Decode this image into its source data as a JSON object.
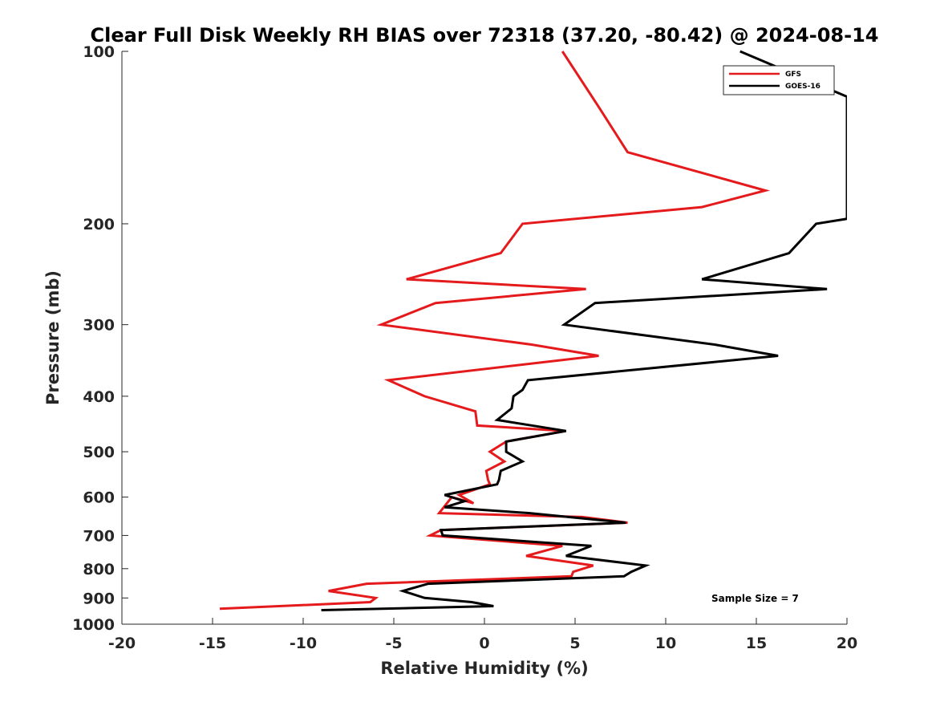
{
  "chart_data": {
    "type": "line",
    "title": "Clear Full Disk Weekly RH BIAS over 72318 (37.20, -80.42) @ 2024-08-14",
    "xlabel": "Relative Humidity (%)",
    "ylabel": "Pressure (mb)",
    "xlim": [
      -20,
      20
    ],
    "ylim": [
      100,
      1000
    ],
    "y_scale": "log",
    "y_reversed": true,
    "grid": false,
    "legend_position": "top-right",
    "xticks": [
      -20,
      -15,
      -10,
      -5,
      0,
      5,
      10,
      15,
      20
    ],
    "yticks": [
      100,
      200,
      300,
      400,
      500,
      600,
      700,
      800,
      900,
      1000
    ],
    "annotation": "Sample Size = 7",
    "series": [
      {
        "name": "GFS",
        "color": "#e41a1c",
        "points": [
          [
            4.3,
            100
          ],
          [
            6.3,
            125
          ],
          [
            7.9,
            150
          ],
          [
            15.5,
            175
          ],
          [
            12.0,
            187
          ],
          [
            2.1,
            200
          ],
          [
            0.9,
            225
          ],
          [
            -4.3,
            250
          ],
          [
            5.6,
            260
          ],
          [
            -2.7,
            275
          ],
          [
            -5.7,
            300
          ],
          [
            2.6,
            325
          ],
          [
            6.3,
            340
          ],
          [
            -5.3,
            375
          ],
          [
            -3.3,
            400
          ],
          [
            -0.5,
            425
          ],
          [
            -0.4,
            450
          ],
          [
            4.5,
            460
          ],
          [
            1.2,
            480
          ],
          [
            0.3,
            500
          ],
          [
            1.1,
            520
          ],
          [
            0.1,
            540
          ],
          [
            0.2,
            560
          ],
          [
            0.3,
            570
          ],
          [
            -1.4,
            595
          ],
          [
            -0.6,
            615
          ],
          [
            -1.8,
            600
          ],
          [
            -2.5,
            640
          ],
          [
            5.4,
            650
          ],
          [
            7.9,
            665
          ],
          [
            -2.4,
            685
          ],
          [
            -3.0,
            700
          ],
          [
            4.3,
            730
          ],
          [
            2.3,
            760
          ],
          [
            6.0,
            790
          ],
          [
            4.9,
            810
          ],
          [
            4.8,
            825
          ],
          [
            -6.5,
            850
          ],
          [
            -8.6,
            875
          ],
          [
            -6.0,
            900
          ],
          [
            -6.3,
            915
          ],
          [
            -14.6,
            940
          ]
        ]
      },
      {
        "name": "GOES-16",
        "color": "#000000",
        "points": [
          [
            14.1,
            100
          ],
          [
            20.0,
            120
          ],
          [
            20.0,
            196
          ],
          [
            18.3,
            200
          ],
          [
            16.8,
            225
          ],
          [
            12.0,
            250
          ],
          [
            18.9,
            260
          ],
          [
            6.1,
            275
          ],
          [
            4.4,
            300
          ],
          [
            12.7,
            325
          ],
          [
            16.2,
            340
          ],
          [
            2.4,
            375
          ],
          [
            2.1,
            390
          ],
          [
            1.6,
            400
          ],
          [
            1.5,
            420
          ],
          [
            0.7,
            440
          ],
          [
            4.5,
            460
          ],
          [
            1.2,
            480
          ],
          [
            1.2,
            500
          ],
          [
            2.1,
            520
          ],
          [
            0.9,
            540
          ],
          [
            0.8,
            560
          ],
          [
            0.7,
            570
          ],
          [
            -2.2,
            595
          ],
          [
            -1.1,
            610
          ],
          [
            -2.2,
            625
          ],
          [
            2.5,
            640
          ],
          [
            7.8,
            665
          ],
          [
            -2.4,
            685
          ],
          [
            -2.3,
            700
          ],
          [
            5.9,
            730
          ],
          [
            4.5,
            760
          ],
          [
            8.9,
            790
          ],
          [
            8.1,
            810
          ],
          [
            7.7,
            825
          ],
          [
            -3.1,
            850
          ],
          [
            -4.5,
            875
          ],
          [
            -3.3,
            900
          ],
          [
            -0.7,
            915
          ],
          [
            0.5,
            930
          ],
          [
            -9.0,
            945
          ]
        ]
      }
    ]
  }
}
